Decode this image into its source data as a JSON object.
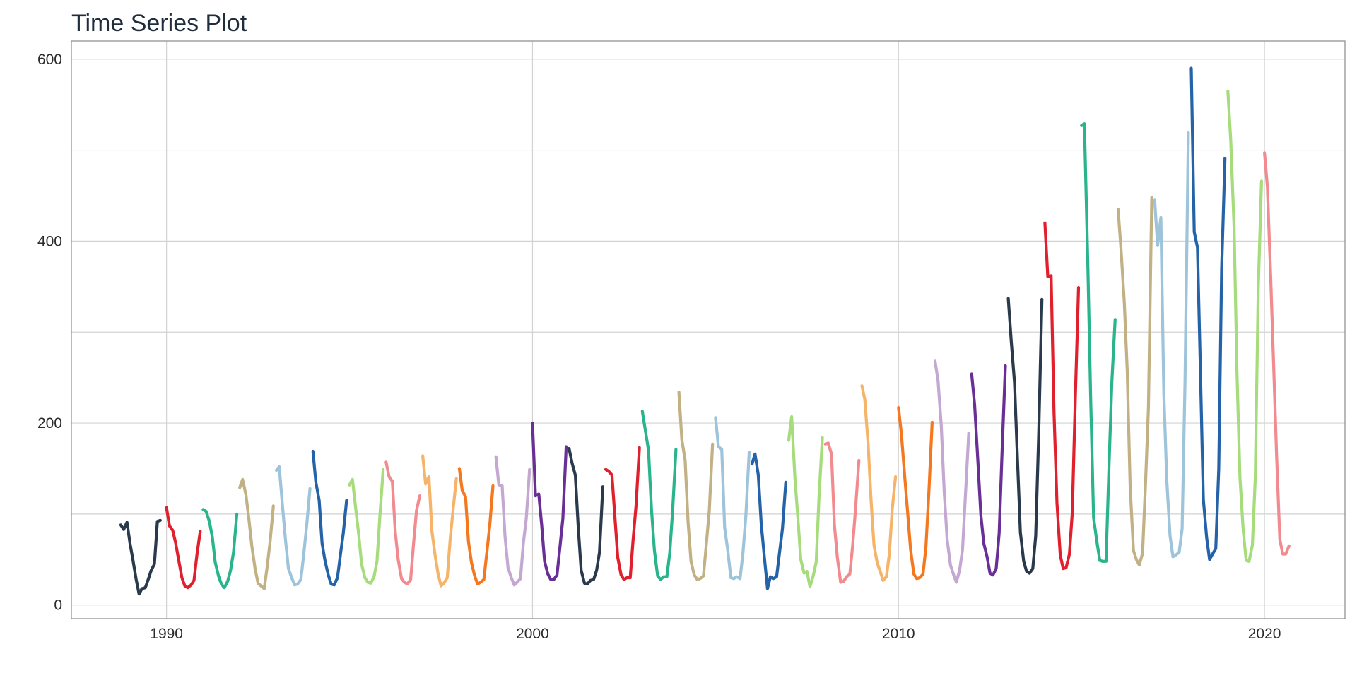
{
  "chart_data": {
    "type": "line",
    "title": "Time Series Plot",
    "xlabel": "",
    "ylabel": "",
    "xlim": [
      1987.4,
      2022.2
    ],
    "ylim": [
      -15,
      620
    ],
    "x_ticks": [
      1990,
      2000,
      2010,
      2020
    ],
    "y_ticks": [
      0,
      200,
      400,
      600
    ],
    "grid": true,
    "legend": "none",
    "series": [
      {
        "color": "#2a3a4c",
        "x": [
          1988.75,
          1988.83,
          1988.92,
          1989.0,
          1989.08,
          1989.17,
          1989.25,
          1989.33,
          1989.42,
          1989.5,
          1989.58,
          1989.67,
          1989.75,
          1989.83
        ],
        "values": [
          88,
          83,
          91,
          68,
          50,
          28,
          12,
          18,
          19,
          28,
          38,
          45,
          92,
          93
        ]
      },
      {
        "color": "#e0202c",
        "x": [
          1990.0,
          1990.08,
          1990.17,
          1990.25,
          1990.33,
          1990.42,
          1990.5,
          1990.58,
          1990.67,
          1990.75,
          1990.83,
          1990.92
        ],
        "values": [
          107,
          87,
          82,
          68,
          50,
          30,
          21,
          19,
          22,
          27,
          55,
          81
        ]
      },
      {
        "color": "#2ab48c",
        "x": [
          1991.0,
          1991.08,
          1991.17,
          1991.25,
          1991.33,
          1991.42,
          1991.5,
          1991.58,
          1991.67,
          1991.75,
          1991.83,
          1991.92
        ],
        "values": [
          105,
          103,
          92,
          75,
          47,
          32,
          23,
          19,
          26,
          38,
          58,
          100
        ]
      },
      {
        "color": "#c2b185",
        "x": [
          1992.0,
          1992.08,
          1992.17,
          1992.25,
          1992.33,
          1992.42,
          1992.5,
          1992.58,
          1992.67,
          1992.75,
          1992.83,
          1992.92
        ],
        "values": [
          129,
          138,
          121,
          95,
          65,
          40,
          24,
          21,
          18,
          42,
          70,
          109
        ]
      },
      {
        "color": "#9dc4da",
        "x": [
          1993.0,
          1993.08,
          1993.17,
          1993.25,
          1993.33,
          1993.42,
          1993.5,
          1993.58,
          1993.67,
          1993.75,
          1993.83,
          1993.92
        ],
        "values": [
          148,
          152,
          108,
          72,
          40,
          30,
          22,
          23,
          28,
          56,
          88,
          128
        ]
      },
      {
        "color": "#2563a8",
        "x": [
          1994.0,
          1994.08,
          1994.17,
          1994.25,
          1994.33,
          1994.42,
          1994.5,
          1994.58,
          1994.67,
          1994.75,
          1994.83,
          1994.92
        ],
        "values": [
          169,
          135,
          115,
          68,
          49,
          33,
          23,
          22,
          30,
          55,
          79,
          115
        ]
      },
      {
        "color": "#a6dc7c",
        "x": [
          1995.0,
          1995.08,
          1995.17,
          1995.25,
          1995.33,
          1995.42,
          1995.5,
          1995.58,
          1995.67,
          1995.75,
          1995.83,
          1995.92
        ],
        "values": [
          132,
          138,
          106,
          78,
          45,
          30,
          25,
          24,
          31,
          48,
          98,
          149
        ]
      },
      {
        "color": "#f28b8f",
        "x": [
          1996.0,
          1996.08,
          1996.17,
          1996.25,
          1996.33,
          1996.42,
          1996.5,
          1996.58,
          1996.67,
          1996.75,
          1996.83,
          1996.92
        ],
        "values": [
          157,
          141,
          136,
          80,
          50,
          29,
          25,
          23,
          28,
          68,
          104,
          120
        ]
      },
      {
        "color": "#f5b46a",
        "x": [
          1997.0,
          1997.08,
          1997.17,
          1997.25,
          1997.33,
          1997.42,
          1997.5,
          1997.58,
          1997.67,
          1997.75,
          1997.83,
          1997.92
        ],
        "values": [
          164,
          133,
          141,
          82,
          57,
          34,
          21,
          24,
          30,
          72,
          105,
          139
        ]
      },
      {
        "color": "#f47820",
        "x": [
          1998.0,
          1998.08,
          1998.17,
          1998.25,
          1998.33,
          1998.42,
          1998.5,
          1998.58,
          1998.67,
          1998.75,
          1998.83,
          1998.92
        ],
        "values": [
          150,
          126,
          119,
          70,
          47,
          32,
          23,
          25,
          28,
          57,
          87,
          131
        ]
      },
      {
        "color": "#c4a8d2",
        "x": [
          1999.0,
          1999.08,
          1999.17,
          1999.25,
          1999.33,
          1999.42,
          1999.5,
          1999.58,
          1999.67,
          1999.75,
          1999.83,
          1999.92
        ],
        "values": [
          163,
          132,
          131,
          75,
          41,
          30,
          22,
          25,
          29,
          68,
          95,
          149
        ]
      },
      {
        "color": "#6a2f96",
        "x": [
          2000.0,
          2000.08,
          2000.17,
          2000.25,
          2000.33,
          2000.42,
          2000.5,
          2000.58,
          2000.67,
          2000.75,
          2000.83,
          2000.92
        ],
        "values": [
          200,
          120,
          122,
          88,
          48,
          34,
          28,
          28,
          33,
          64,
          95,
          174
        ]
      },
      {
        "color": "#2a3a4c",
        "x": [
          2001.0,
          2001.08,
          2001.17,
          2001.25,
          2001.33,
          2001.42,
          2001.5,
          2001.58,
          2001.67,
          2001.75,
          2001.83,
          2001.92
        ],
        "values": [
          172,
          156,
          143,
          85,
          38,
          24,
          23,
          27,
          28,
          38,
          58,
          130
        ]
      },
      {
        "color": "#e0202c",
        "x": [
          2002.0,
          2002.08,
          2002.17,
          2002.25,
          2002.33,
          2002.42,
          2002.5,
          2002.58,
          2002.67,
          2002.75,
          2002.83,
          2002.92
        ],
        "values": [
          149,
          147,
          143,
          97,
          52,
          33,
          28,
          30,
          30,
          72,
          110,
          173
        ]
      },
      {
        "color": "#2ab48c",
        "x": [
          2003.0,
          2003.08,
          2003.17,
          2003.25,
          2003.33,
          2003.42,
          2003.5,
          2003.58,
          2003.67,
          2003.75,
          2003.83,
          2003.92
        ],
        "values": [
          213,
          193,
          170,
          106,
          60,
          32,
          28,
          31,
          31,
          57,
          105,
          171
        ]
      },
      {
        "color": "#c2b185",
        "x": [
          2004.0,
          2004.08,
          2004.17,
          2004.25,
          2004.33,
          2004.42,
          2004.5,
          2004.58,
          2004.67,
          2004.75,
          2004.83,
          2004.92
        ],
        "values": [
          234,
          182,
          159,
          92,
          48,
          33,
          28,
          29,
          32,
          67,
          104,
          177
        ]
      },
      {
        "color": "#9dc4da",
        "x": [
          2005.0,
          2005.08,
          2005.17,
          2005.25,
          2005.33,
          2005.42,
          2005.5,
          2005.58,
          2005.67,
          2005.75,
          2005.83,
          2005.92
        ],
        "values": [
          206,
          174,
          171,
          85,
          62,
          30,
          29,
          31,
          29,
          57,
          98,
          168
        ]
      },
      {
        "color": "#2563a8",
        "x": [
          2006.0,
          2006.08,
          2006.17,
          2006.25,
          2006.33,
          2006.42,
          2006.5,
          2006.58,
          2006.67,
          2006.75,
          2006.83,
          2006.92
        ],
        "values": [
          155,
          166,
          143,
          89,
          55,
          18,
          31,
          29,
          31,
          58,
          84,
          135
        ]
      },
      {
        "color": "#a6dc7c",
        "x": [
          2007.0,
          2007.08,
          2007.17,
          2007.25,
          2007.33,
          2007.42,
          2007.5,
          2007.58,
          2007.67,
          2007.75,
          2007.83,
          2007.92
        ],
        "values": [
          181,
          207,
          140,
          96,
          50,
          35,
          37,
          20,
          32,
          47,
          120,
          184
        ]
      },
      {
        "color": "#f28b8f",
        "x": [
          2008.0,
          2008.08,
          2008.17,
          2008.25,
          2008.33,
          2008.42,
          2008.5,
          2008.58,
          2008.67,
          2008.75,
          2008.83,
          2008.92
        ],
        "values": [
          177,
          178,
          166,
          88,
          52,
          25,
          26,
          31,
          34,
          66,
          108,
          159
        ]
      },
      {
        "color": "#f5b46a",
        "x": [
          2009.0,
          2009.08,
          2009.17,
          2009.25,
          2009.33,
          2009.42,
          2009.5,
          2009.58,
          2009.67,
          2009.75,
          2009.83,
          2009.92
        ],
        "values": [
          241,
          226,
          177,
          116,
          66,
          46,
          37,
          27,
          31,
          56,
          106,
          141
        ]
      },
      {
        "color": "#f47820",
        "x": [
          2010.0,
          2010.08,
          2010.17,
          2010.25,
          2010.33,
          2010.42,
          2010.5,
          2010.58,
          2010.67,
          2010.75,
          2010.83,
          2010.92
        ],
        "values": [
          217,
          188,
          141,
          102,
          61,
          34,
          29,
          30,
          34,
          64,
          123,
          201
        ]
      },
      {
        "color": "#c4a8d2",
        "x": [
          2011.0,
          2011.08,
          2011.17,
          2011.25,
          2011.33,
          2011.42,
          2011.5,
          2011.58,
          2011.67,
          2011.75,
          2011.83,
          2011.92
        ],
        "values": [
          268,
          247,
          197,
          124,
          72,
          44,
          34,
          25,
          38,
          61,
          121,
          189
        ]
      },
      {
        "color": "#6a2f96",
        "x": [
          2012.0,
          2012.08,
          2012.17,
          2012.25,
          2012.33,
          2012.42,
          2012.5,
          2012.58,
          2012.67,
          2012.75,
          2012.83,
          2012.92
        ],
        "values": [
          254,
          220,
          158,
          99,
          68,
          53,
          35,
          33,
          40,
          79,
          168,
          263
        ]
      },
      {
        "color": "#2a3a4c",
        "x": [
          2013.0,
          2013.08,
          2013.17,
          2013.25,
          2013.33,
          2013.42,
          2013.5,
          2013.58,
          2013.67,
          2013.75,
          2013.83,
          2013.92
        ],
        "values": [
          337,
          290,
          245,
          160,
          80,
          48,
          37,
          35,
          40,
          76,
          186,
          336
        ]
      },
      {
        "color": "#e0202c",
        "x": [
          2014.0,
          2014.08,
          2014.17,
          2014.25,
          2014.33,
          2014.42,
          2014.5,
          2014.58,
          2014.67,
          2014.75,
          2014.83,
          2014.92
        ],
        "values": [
          420,
          361,
          362,
          212,
          112,
          55,
          40,
          41,
          56,
          102,
          226,
          349
        ]
      },
      {
        "color": "#2ab48c",
        "x": [
          2015.0,
          2015.08,
          2015.17,
          2015.25,
          2015.33,
          2015.42,
          2015.5,
          2015.58,
          2015.67,
          2015.75,
          2015.83,
          2015.92
        ],
        "values": [
          527,
          529,
          380,
          230,
          96,
          70,
          49,
          48,
          48,
          150,
          246,
          314
        ]
      },
      {
        "color": "#c2b185",
        "x": [
          2016.0,
          2016.08,
          2016.17,
          2016.25,
          2016.33,
          2016.42,
          2016.5,
          2016.58,
          2016.67,
          2016.75,
          2016.83,
          2016.92
        ],
        "values": [
          435,
          391,
          332,
          258,
          131,
          60,
          50,
          44,
          57,
          134,
          217,
          448
        ]
      },
      {
        "color": "#9dc4da",
        "x": [
          2017.0,
          2017.08,
          2017.17,
          2017.25,
          2017.33,
          2017.42,
          2017.5,
          2017.58,
          2017.67,
          2017.75,
          2017.83,
          2017.92
        ],
        "values": [
          445,
          395,
          426,
          232,
          138,
          76,
          53,
          55,
          58,
          84,
          247,
          519
        ]
      },
      {
        "color": "#2563a8",
        "x": [
          2018.0,
          2018.08,
          2018.17,
          2018.25,
          2018.33,
          2018.42,
          2018.5,
          2018.58,
          2018.67,
          2018.75,
          2018.83,
          2018.92
        ],
        "values": [
          590,
          410,
          393,
          255,
          116,
          74,
          50,
          56,
          62,
          150,
          370,
          491
        ]
      },
      {
        "color": "#a6dc7c",
        "x": [
          2019.0,
          2019.08,
          2019.17,
          2019.25,
          2019.33,
          2019.42,
          2019.5,
          2019.58,
          2019.67,
          2019.75,
          2019.83,
          2019.92
        ],
        "values": [
          565,
          510,
          415,
          255,
          140,
          82,
          49,
          48,
          66,
          140,
          348,
          466
        ]
      },
      {
        "color": "#f28b8f",
        "x": [
          2020.0,
          2020.08,
          2020.17,
          2020.25,
          2020.33,
          2020.42,
          2020.5,
          2020.58,
          2020.67
        ],
        "values": [
          497,
          460,
          360,
          265,
          165,
          72,
          56,
          56,
          65
        ]
      }
    ]
  }
}
